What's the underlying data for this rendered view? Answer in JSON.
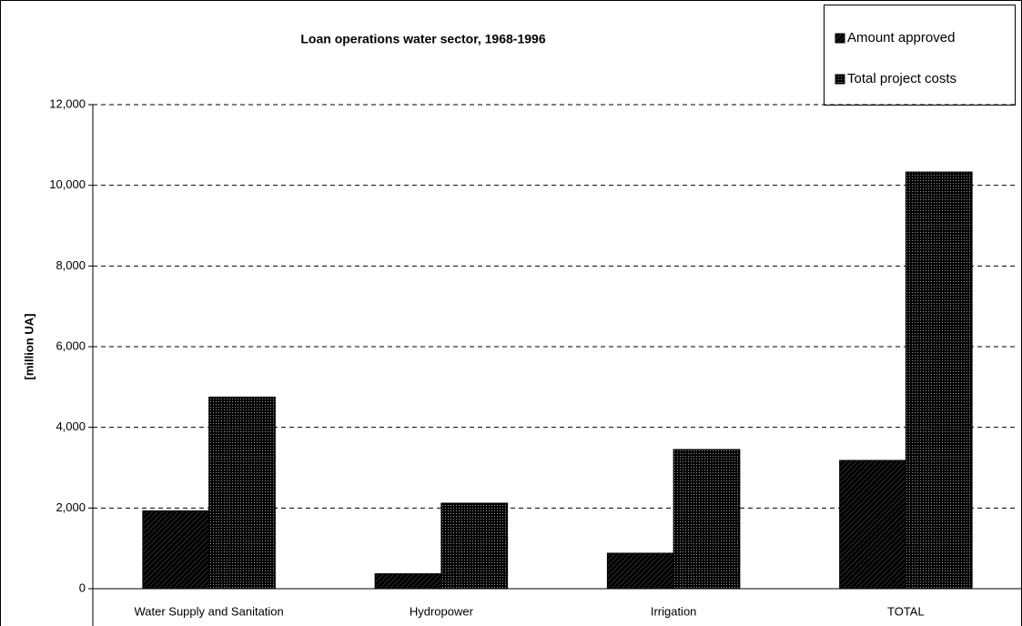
{
  "chart_data": {
    "type": "bar",
    "title": "Loan operations water sector,   1968-1996",
    "y_label": "[million UA]",
    "categories": [
      "Water Supply and Sanitation",
      "Hydropower",
      "Irrigation",
      "TOTAL"
    ],
    "series": [
      {
        "name": "Amount approved",
        "color": "#a0a0a0",
        "values": [
          1930,
          370,
          880,
          3180
        ]
      },
      {
        "name": "Total project costs",
        "color": "#e4e4e4",
        "values": [
          4750,
          2120,
          3450,
          10330
        ]
      }
    ],
    "ylim": [
      0,
      12000
    ],
    "yticks": [
      0,
      {
        "value": 2000,
        "label": "2,000"
      },
      {
        "value": 4000,
        "label": "4,000"
      },
      {
        "value": 6000,
        "label": "6,000"
      },
      {
        "value": 8000,
        "label": "8,000"
      },
      {
        "value": 10000,
        "label": "10,000"
      },
      {
        "value": 12000,
        "label": "12,000"
      }
    ],
    "grid": true,
    "legend": "top-right"
  }
}
